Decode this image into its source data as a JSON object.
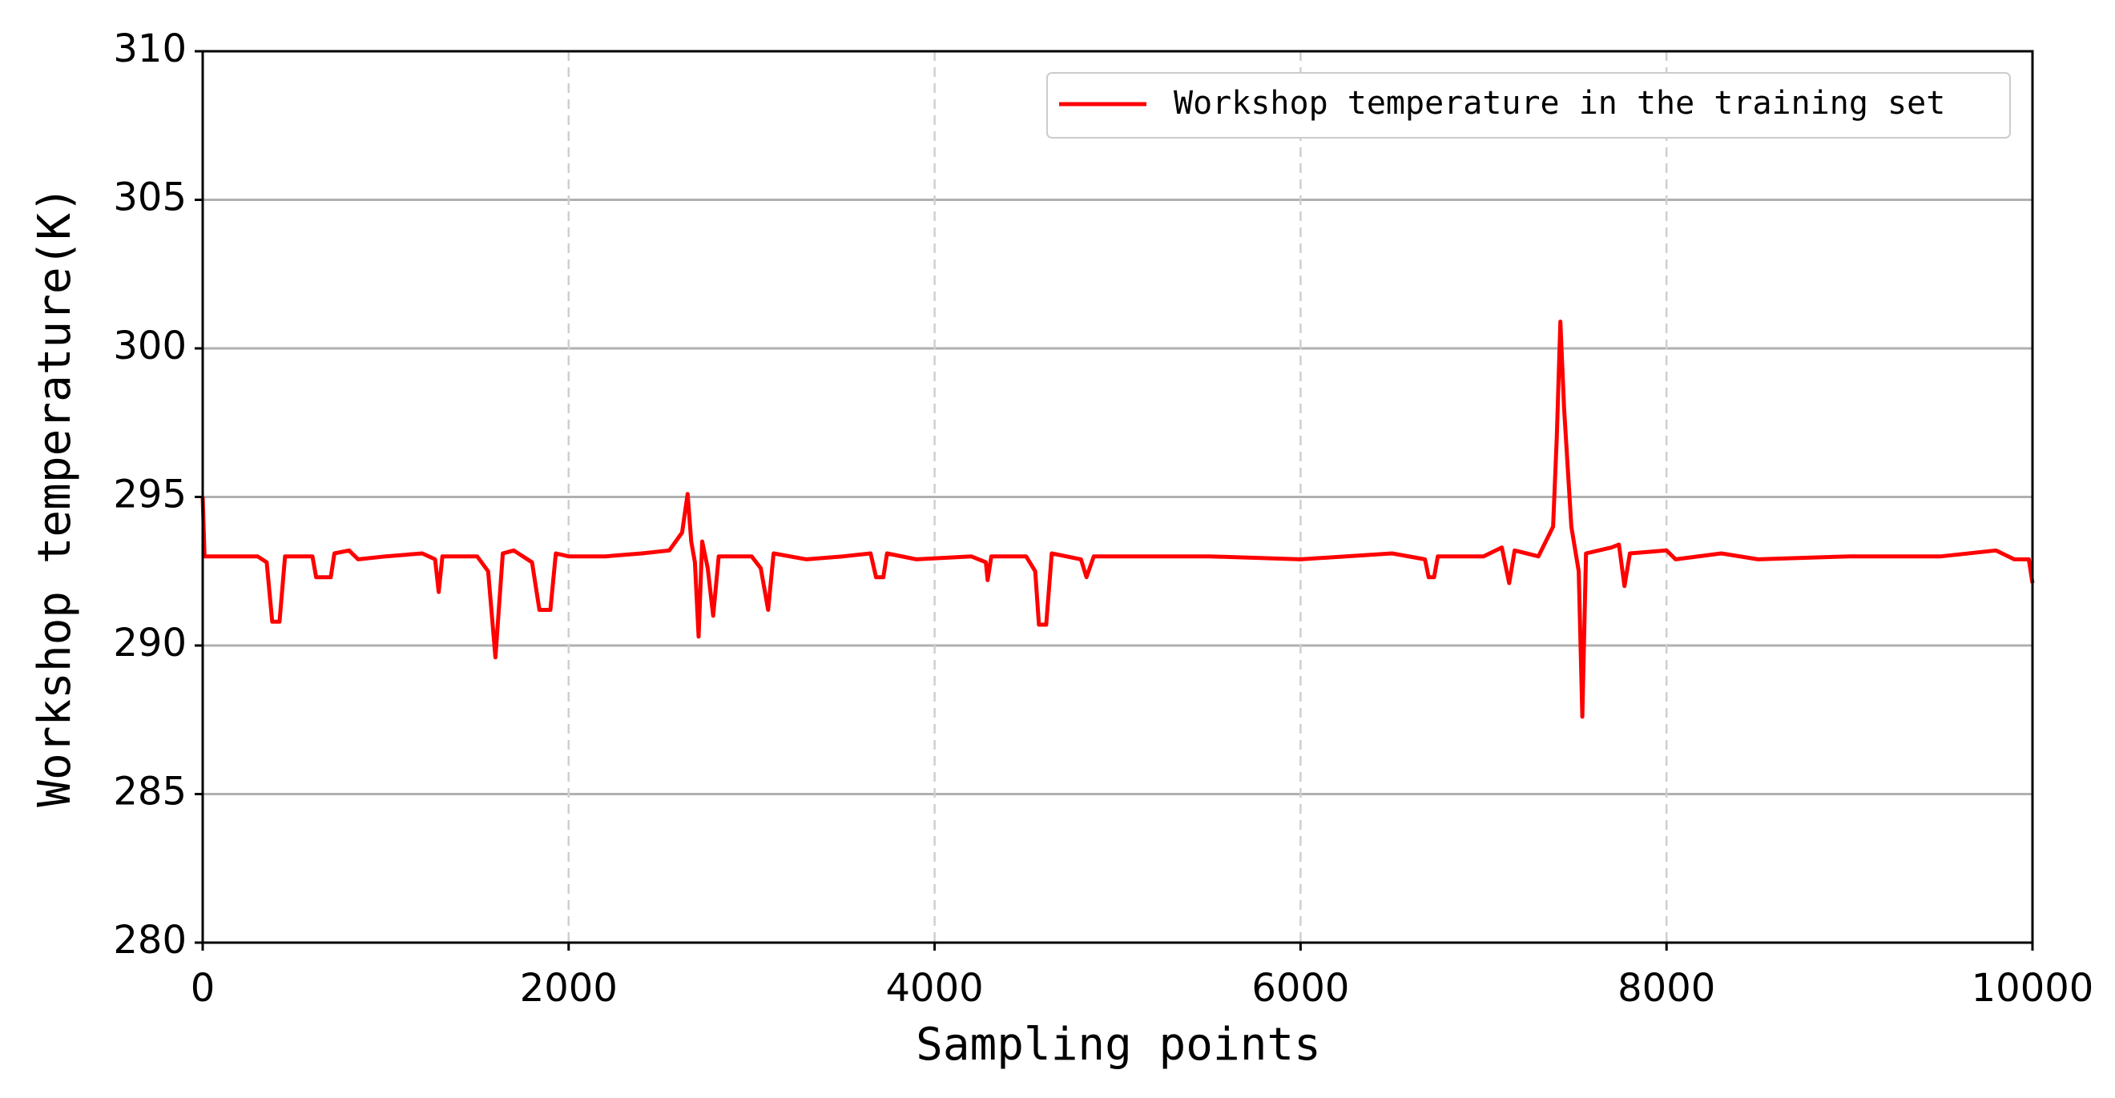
{
  "chart_data": {
    "type": "line",
    "xlabel": "Sampling points",
    "ylabel": "Workshop temperature(K)",
    "x": [
      0,
      10,
      100,
      300,
      350,
      380,
      420,
      450,
      600,
      620,
      700,
      720,
      800,
      850,
      1000,
      1200,
      1270,
      1290,
      1310,
      1500,
      1560,
      1600,
      1640,
      1700,
      1800,
      1840,
      1900,
      1930,
      2000,
      2200,
      2400,
      2550,
      2620,
      2650,
      2670,
      2690,
      2710,
      2730,
      2760,
      2790,
      2820,
      3000,
      3050,
      3090,
      3120,
      3300,
      3500,
      3650,
      3680,
      3720,
      3740,
      3900,
      4200,
      4280,
      4290,
      4310,
      4500,
      4550,
      4570,
      4610,
      4640,
      4800,
      4830,
      4870,
      5000,
      5500,
      6000,
      6500,
      6680,
      6700,
      6730,
      6750,
      7000,
      7100,
      7140,
      7170,
      7300,
      7380,
      7400,
      7420,
      7440,
      7480,
      7520,
      7540,
      7560,
      7700,
      7740,
      7770,
      7800,
      8000,
      8050,
      8300,
      8500,
      9000,
      9500,
      9800,
      9900,
      9980,
      10000
    ],
    "series": [
      {
        "name": "Workshop temperature in the training set",
        "color": "#ff0000",
        "values": [
          295,
          293,
          293,
          293,
          292.8,
          290.8,
          290.8,
          293,
          293,
          292.3,
          292.3,
          293.1,
          293.2,
          292.9,
          293,
          293.1,
          292.9,
          291.8,
          293,
          293,
          292.5,
          289.6,
          293.1,
          293.2,
          292.8,
          291.2,
          291.2,
          293.1,
          293,
          293,
          293.1,
          293.2,
          293.8,
          295.1,
          293.5,
          292.8,
          290.3,
          293.5,
          292.6,
          291,
          293,
          293,
          292.6,
          291.2,
          293.1,
          292.9,
          293,
          293.1,
          292.3,
          292.3,
          293.1,
          292.9,
          293,
          292.8,
          292.2,
          293,
          293,
          292.5,
          290.7,
          290.7,
          293.1,
          292.9,
          292.3,
          293,
          293,
          293,
          292.9,
          293.1,
          292.9,
          292.3,
          292.3,
          293,
          293,
          293.3,
          292.1,
          293.2,
          293,
          294,
          297,
          300.9,
          298,
          294,
          292.5,
          287.6,
          293.1,
          293.3,
          293.4,
          292,
          293.1,
          293.2,
          292.9,
          293.1,
          292.9,
          293,
          293,
          293.2,
          292.9,
          292.9,
          292.1
        ]
      }
    ],
    "xlim": [
      0,
      10000
    ],
    "xticks": [
      0,
      2000,
      4000,
      6000,
      8000,
      10000
    ],
    "ylim": [
      280,
      310
    ],
    "yticks": [
      280,
      285,
      290,
      295,
      300,
      305,
      310
    ],
    "grid": true,
    "legend": "upper right"
  }
}
